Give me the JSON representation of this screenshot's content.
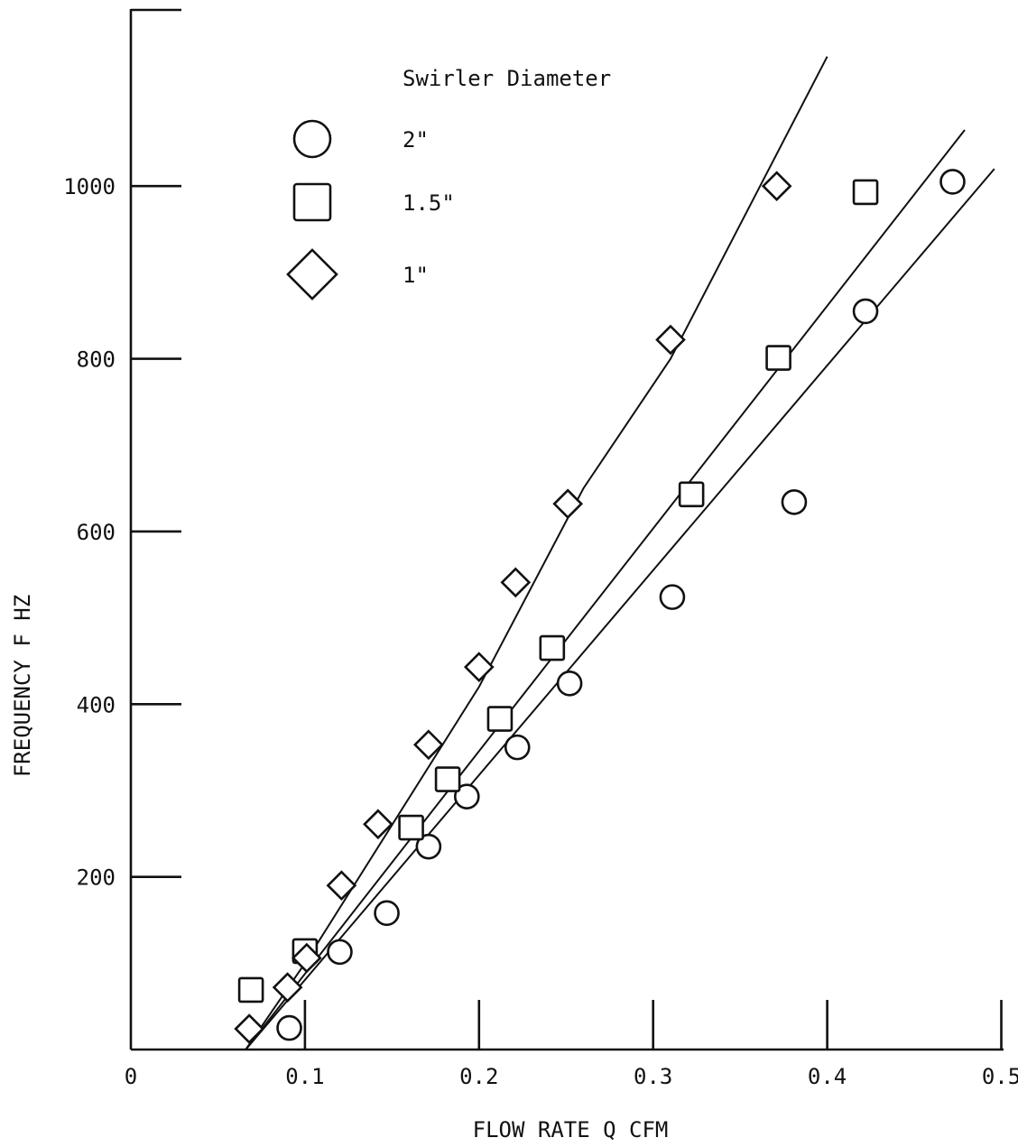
{
  "chart_data": {
    "type": "scatter",
    "title": "",
    "xlabel": "FLOW RATE Q CFM",
    "ylabel": "FREQUENCY F HZ",
    "xlim": [
      0,
      0.5
    ],
    "ylim": [
      0,
      1200
    ],
    "x_ticks": [
      "0",
      "0.1",
      "0.2",
      "0.3",
      "0.4",
      "0.5"
    ],
    "x_tick_values": [
      0,
      0.1,
      0.2,
      0.3,
      0.4,
      0.5
    ],
    "y_ticks": [
      "200",
      "400",
      "600",
      "800",
      "1000"
    ],
    "y_tick_values": [
      200,
      400,
      600,
      800,
      1000
    ],
    "grid": false,
    "legend": {
      "title": "Swirler Diameter",
      "placement": "top-center"
    },
    "series": [
      {
        "name": "2\"",
        "marker": "circle",
        "x": [
          0.091,
          0.12,
          0.147,
          0.171,
          0.193,
          0.222,
          0.252,
          0.311,
          0.381,
          0.422,
          0.472
        ],
        "y": [
          25,
          113,
          158,
          235,
          293,
          350,
          424,
          524,
          634,
          855,
          1005
        ],
        "fit_line": {
          "x": [
            0.066,
            0.496
          ],
          "y": [
            0,
            1020
          ]
        }
      },
      {
        "name": "1.5\"",
        "marker": "square",
        "x": [
          0.069,
          0.1,
          0.161,
          0.182,
          0.212,
          0.242,
          0.322,
          0.372,
          0.422
        ],
        "y": [
          69,
          114,
          257,
          313,
          383,
          465,
          643,
          801,
          993
        ],
        "fit_line": {
          "x": [
            0.066,
            0.479
          ],
          "y": [
            0,
            1065
          ]
        }
      },
      {
        "name": "1\"",
        "marker": "diamond",
        "x": [
          0.068,
          0.09,
          0.101,
          0.121,
          0.142,
          0.171,
          0.2,
          0.221,
          0.251,
          0.31,
          0.371
        ],
        "y": [
          24,
          72,
          106,
          190,
          261,
          353,
          443,
          541,
          632,
          822,
          1000
        ],
        "fit_line": {
          "x": [
            0.066,
            0.1,
            0.2,
            0.26,
            0.31,
            0.4
          ],
          "y": [
            0,
            100,
            420,
            650,
            800,
            1150
          ]
        }
      }
    ]
  }
}
